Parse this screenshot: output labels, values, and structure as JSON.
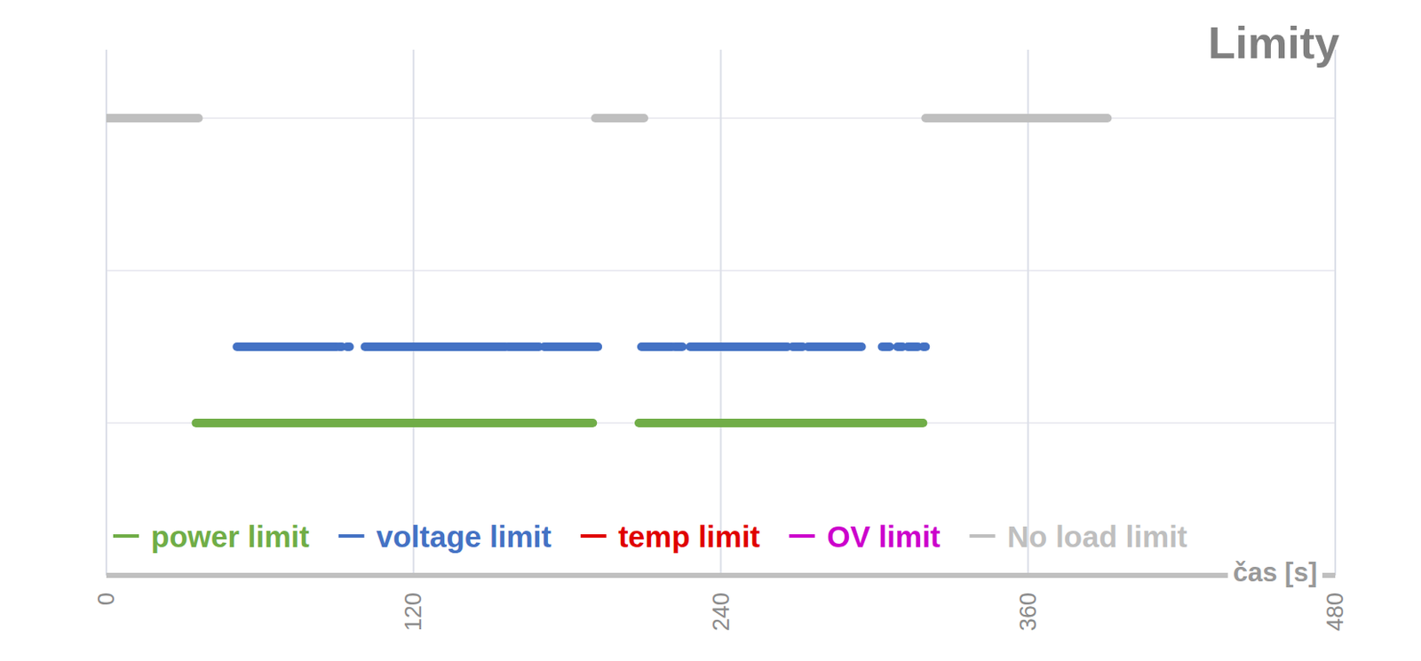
{
  "chart_data": {
    "type": "timeline",
    "title": "Limity",
    "x_label": "čas [s]",
    "xlim": [
      0,
      480
    ],
    "xticks": [
      0,
      120,
      240,
      360,
      480
    ],
    "ylim": [
      0,
      3.45
    ],
    "yticks": [
      0,
      1,
      2,
      3
    ],
    "grid": true,
    "tick_labels": "x",
    "legend": "bottom",
    "series": [
      {
        "name": "power limit",
        "color": "#70ad47",
        "level": 1,
        "segments": [
          [
            35,
            190
          ],
          [
            208,
            319
          ]
        ]
      },
      {
        "name": "voltage limit",
        "color": "#4472c4",
        "level": 1.5,
        "segments": [
          [
            51,
            90
          ],
          [
            91,
            92
          ],
          [
            94,
            95
          ],
          [
            101,
            156
          ],
          [
            157,
            169
          ],
          [
            171,
            192
          ],
          [
            209,
            221
          ],
          [
            222,
            225
          ],
          [
            228,
            266
          ],
          [
            268,
            272
          ],
          [
            274,
            295
          ],
          [
            303,
            306
          ],
          [
            309,
            311
          ],
          [
            313,
            317
          ],
          [
            319,
            320
          ]
        ]
      },
      {
        "name": "temp limit",
        "color": "#e00000",
        "segments": []
      },
      {
        "name": "OV limit",
        "color": "#cc00cc",
        "segments": []
      },
      {
        "name": "No load limit",
        "color": "#bfbfbf",
        "level": 3,
        "segments": [
          [
            0,
            36
          ],
          [
            191,
            210
          ],
          [
            320,
            391
          ]
        ]
      }
    ]
  }
}
